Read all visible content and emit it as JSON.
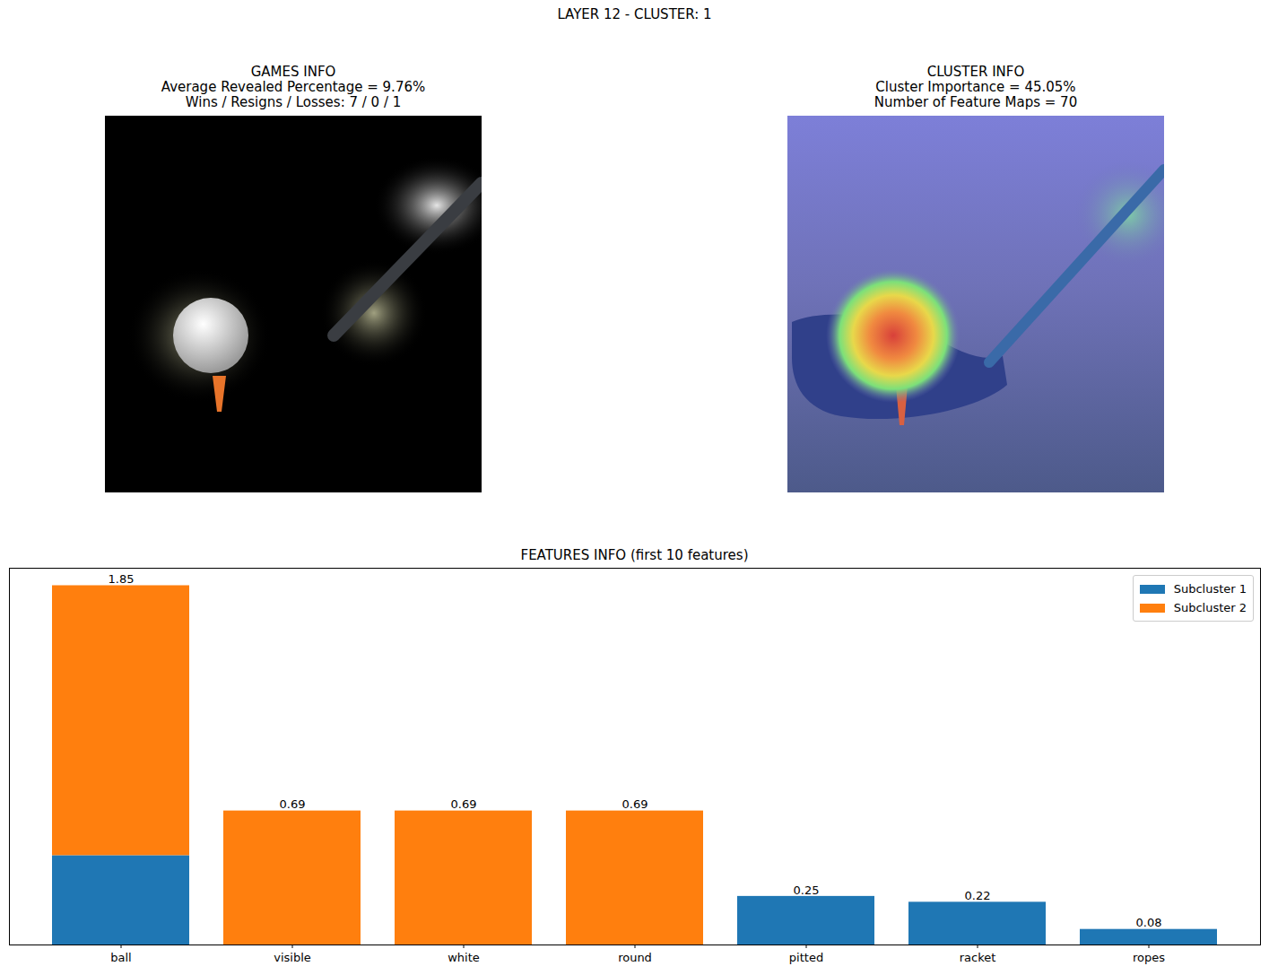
{
  "figure": {
    "title": "LAYER 12 - CLUSTER: 1",
    "panels": [
      {
        "title": [
          "GAMES INFO",
          "Average Revealed Percentage = 9.76%",
          "Wins / Resigns / Losses: 7 / 0 / 1"
        ]
      },
      {
        "title": [
          "CLUSTER INFO",
          "Cluster Importance = 45.05%",
          "Number of Feature Maps = 70"
        ]
      }
    ]
  },
  "chart_data": {
    "type": "bar",
    "title": "FEATURES INFO (first 10 features)",
    "categories": [
      "ball",
      "visible",
      "white",
      "round",
      "pitted",
      "racket",
      "ropes"
    ],
    "series": [
      {
        "name": "Subcluster 1",
        "color": "#1f77b4",
        "values": [
          0.46,
          null,
          null,
          null,
          0.25,
          0.22,
          0.08
        ]
      },
      {
        "name": "Subcluster 2",
        "color": "#ff7f0e",
        "values": [
          1.39,
          0.69,
          0.69,
          0.69,
          null,
          null,
          null
        ]
      }
    ],
    "total_labels": [
      "1.85",
      "0.69",
      "0.69",
      "0.69",
      "0.25",
      "0.22",
      "0.08"
    ],
    "stacked": true,
    "data_labels": true,
    "tick_labels": "x",
    "ylim": [
      0,
      1.94
    ],
    "legend": "upper right",
    "grid": false
  }
}
